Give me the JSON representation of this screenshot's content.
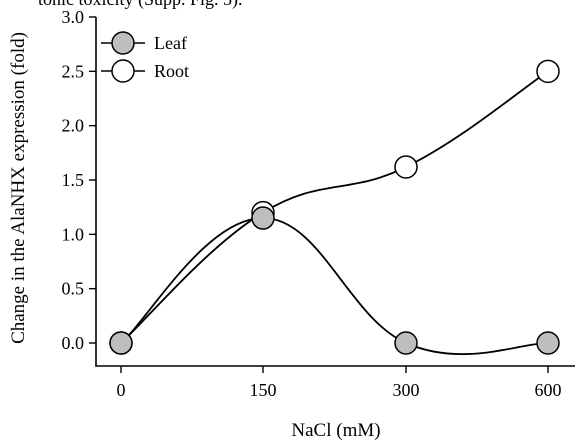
{
  "caption_fragment": "tonic toxicity (Supp. Fig. 5).",
  "chart_data": {
    "type": "line",
    "categories": [
      "0",
      "150",
      "300",
      "600"
    ],
    "series": [
      {
        "name": "Leaf",
        "values": [
          0.0,
          1.15,
          0.0,
          0.0
        ],
        "fill": "#bebebe"
      },
      {
        "name": "Root",
        "values": [
          0.0,
          1.2,
          1.62,
          2.5
        ],
        "fill": "#ffffff"
      }
    ],
    "xlabel": "NaCl (mM)",
    "ylabel": "Change in the AlaNHX expression (fold)",
    "ylim": [
      0,
      3.0
    ],
    "yticks": [
      "0.0",
      "0.5",
      "1.0",
      "1.5",
      "2.0",
      "2.5",
      "3.0"
    ],
    "ytick_values": [
      0,
      0.5,
      1.0,
      1.5,
      2.0,
      2.5,
      3.0
    ],
    "legend_position": "top-left",
    "grid": false,
    "line_color": "#000000"
  }
}
